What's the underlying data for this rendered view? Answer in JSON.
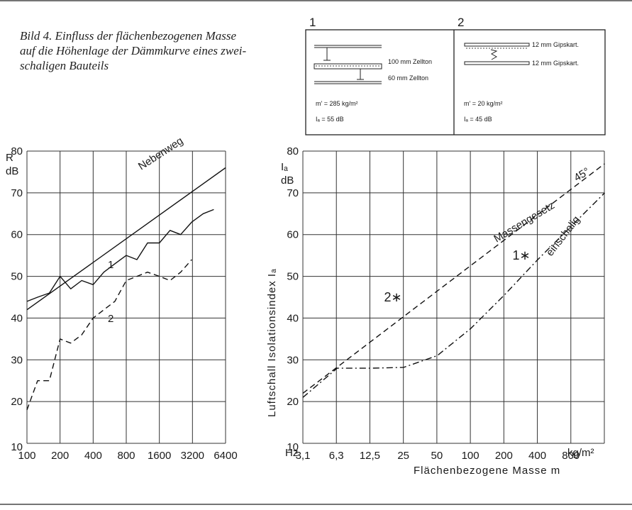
{
  "caption": {
    "lines": [
      "Bild 4. Einfluss der flächenbezogenen Masse",
      "auf die Höhenlage der Dämmkurve eines zwei-",
      "schaligen Bauteils"
    ]
  },
  "legend": {
    "panel1": {
      "number": "1",
      "layer1": "100 mm Zellton",
      "layer2": "60 mm Zellton",
      "mass": "m' = 285 kg/m²",
      "index": "Iₐ = 55 dB"
    },
    "panel2": {
      "number": "2",
      "layer1": "12 mm Gipskart.",
      "layer2": "12 mm Gipskart.",
      "mass": "m' = 20 kg/m²",
      "index": "Iₐ = 45 dB"
    }
  },
  "chart_data": [
    {
      "type": "line",
      "ylabel": "R dB",
      "ylabel_lines": [
        "R",
        "dB"
      ],
      "xlabel": "",
      "x_unit": "Hz",
      "x_ticks": [
        "100",
        "200",
        "400",
        "800",
        "1600",
        "3200",
        "6400"
      ],
      "y_ticks": [
        10,
        20,
        30,
        40,
        50,
        60,
        70,
        80
      ],
      "ylim": [
        10,
        80
      ],
      "xlim_octaves": [
        0,
        6
      ],
      "grid": true,
      "series": [
        {
          "name": "Nebenweg",
          "style": "solid",
          "x": [
            100,
            6400
          ],
          "y": [
            42,
            76
          ]
        },
        {
          "name": "1",
          "style": "solid",
          "x": [
            100,
            125,
            160,
            200,
            250,
            315,
            400,
            500,
            630,
            800,
            1000,
            1250,
            1600,
            2000,
            2500,
            3150,
            4000,
            5000
          ],
          "y": [
            44,
            45,
            46,
            50,
            47,
            49,
            48,
            51,
            53,
            55,
            54,
            58,
            58,
            61,
            60,
            63,
            65,
            66
          ]
        },
        {
          "name": "2",
          "style": "dashed",
          "x": [
            100,
            125,
            160,
            200,
            250,
            315,
            400,
            500,
            630,
            800,
            1000,
            1250,
            1600,
            2000,
            2500,
            3150
          ],
          "y": [
            18,
            25,
            25,
            35,
            34,
            36,
            40,
            42,
            44,
            49,
            50,
            51,
            50,
            49,
            51,
            54
          ]
        }
      ],
      "annotations": [
        "Nebenweg",
        "1",
        "2"
      ]
    },
    {
      "type": "line",
      "ylabel": "Luftschall Isolationsindex Iₐ",
      "ylabel_unit_lines": [
        "Iₐ",
        "dB"
      ],
      "xlabel": "Flächenbezogene Masse m",
      "x_unit": "kg/m²",
      "x_ticks": [
        "3,1",
        "6,3",
        "12,5",
        "25",
        "50",
        "100",
        "200",
        "400",
        "800"
      ],
      "y_ticks": [
        10,
        20,
        30,
        40,
        50,
        60,
        70,
        80
      ],
      "ylim": [
        10,
        80
      ],
      "xlim_octaves": [
        0,
        9
      ],
      "grid": true,
      "series": [
        {
          "name": "Massengesetz",
          "style": "dashed",
          "x": [
            3.1,
            1600
          ],
          "y": [
            22,
            77
          ]
        },
        {
          "name": "einschalig",
          "style": "dashdot",
          "x": [
            3.1,
            6.3,
            12.5,
            25,
            50,
            100,
            200,
            400,
            800,
            1600
          ],
          "y": [
            21,
            28,
            28,
            28.2,
            31,
            37.5,
            45.5,
            54,
            62,
            70
          ]
        }
      ],
      "points": [
        {
          "label": "1∗",
          "x": 285,
          "y": 55
        },
        {
          "label": "2∗",
          "x": 20,
          "y": 45
        }
      ],
      "annotations": [
        "Massengesetz",
        "45°",
        "einschalig"
      ]
    }
  ]
}
